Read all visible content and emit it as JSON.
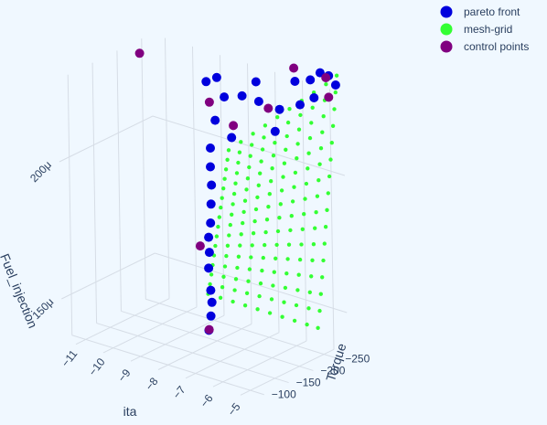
{
  "chart_data": {
    "type": "scatter",
    "scene": "3d",
    "background_color": "#f0f8ff",
    "legend_position": "top-right",
    "grid": true,
    "axes": {
      "x": {
        "title": "ita",
        "ticks": [
          "−11",
          "−10",
          "−9",
          "−8",
          "−7",
          "−6",
          "−5"
        ],
        "range": [
          -11.5,
          -4.5
        ]
      },
      "y": {
        "title": "Torque",
        "ticks": [
          "−250",
          "−200",
          "−150",
          "−100"
        ],
        "range": [
          -270,
          -80
        ]
      },
      "z": {
        "title": "Fuel_injection",
        "ticks": [
          "150μ",
          "200μ"
        ],
        "range": [
          0.000135,
          0.00023
        ]
      }
    },
    "series": [
      {
        "name": "pareto front",
        "color": "#0000dd",
        "marker_size": 10,
        "points": [
          [
            -6.9,
            -123,
            0.000149
          ],
          [
            -7.0,
            -133,
            0.000153
          ],
          [
            -7.1,
            -141,
            0.000157
          ],
          [
            -7.3,
            -150,
            0.00016
          ],
          [
            -7.6,
            -163,
            0.000166
          ],
          [
            -7.8,
            -176,
            0.00017
          ],
          [
            -8.0,
            -186,
            0.000174
          ],
          [
            -8.1,
            -196,
            0.000178
          ],
          [
            -8.2,
            -203,
            0.000184
          ],
          [
            -8.3,
            -210,
            0.00019
          ],
          [
            -8.4,
            -214,
            0.000196
          ],
          [
            -8.5,
            -220,
            0.000202
          ],
          [
            -8.4,
            -225,
            0.000212
          ],
          [
            -7.5,
            -208,
            0.00021
          ],
          [
            -6.3,
            -230,
            0.000214
          ],
          [
            -8.0,
            -222,
            0.000222
          ],
          [
            -7.4,
            -225,
            0.000224
          ],
          [
            -6.9,
            -231,
            0.000223
          ],
          [
            -6.2,
            -234,
            0.000222
          ],
          [
            -5.7,
            -248,
            0.000224
          ],
          [
            -8.6,
            -219,
            0.000226
          ],
          [
            -8.3,
            -224,
            0.000228
          ],
          [
            -7.1,
            -237,
            0.000229
          ],
          [
            -6.0,
            -255,
            0.000231
          ],
          [
            -5.2,
            -249,
            0.000228
          ],
          [
            -5.6,
            -264,
            0.000232
          ],
          [
            -5.2,
            -262,
            0.000236
          ],
          [
            -5.0,
            -268,
            0.000235
          ],
          [
            -4.8,
            -271,
            0.000232
          ]
        ]
      },
      {
        "name": "mesh-grid",
        "color": "#33ff33",
        "marker_size": 5,
        "grid": {
          "ita": [
            -8.7,
            -8.25,
            -7.8,
            -7.35,
            -6.9,
            -6.45,
            -6.0,
            -5.55,
            -5.1,
            -4.7
          ],
          "torque": [
            -222,
            -226,
            -229,
            -232,
            -235,
            -238,
            -241,
            -244,
            -247,
            -250,
            -253,
            -256,
            -259,
            -262,
            -265,
            -268
          ],
          "fuel_min": 0.000148,
          "fuel_max": 0.000236
        }
      },
      {
        "name": "control points",
        "color": "#800080",
        "marker_size": 10,
        "points": [
          [
            -6.8,
            -118,
            0.00015
          ],
          [
            -8.8,
            -213,
            0.000166
          ],
          [
            -11.0,
            -218,
            0.000229
          ],
          [
            -8.6,
            -225,
            0.000218
          ],
          [
            -7.5,
            -212,
            0.000214
          ],
          [
            -6.5,
            -228,
            0.000222
          ],
          [
            -4.9,
            -262,
            0.000228
          ],
          [
            -6.0,
            -253,
            0.000236
          ],
          [
            -5.1,
            -268,
            0.000234
          ]
        ]
      }
    ]
  }
}
